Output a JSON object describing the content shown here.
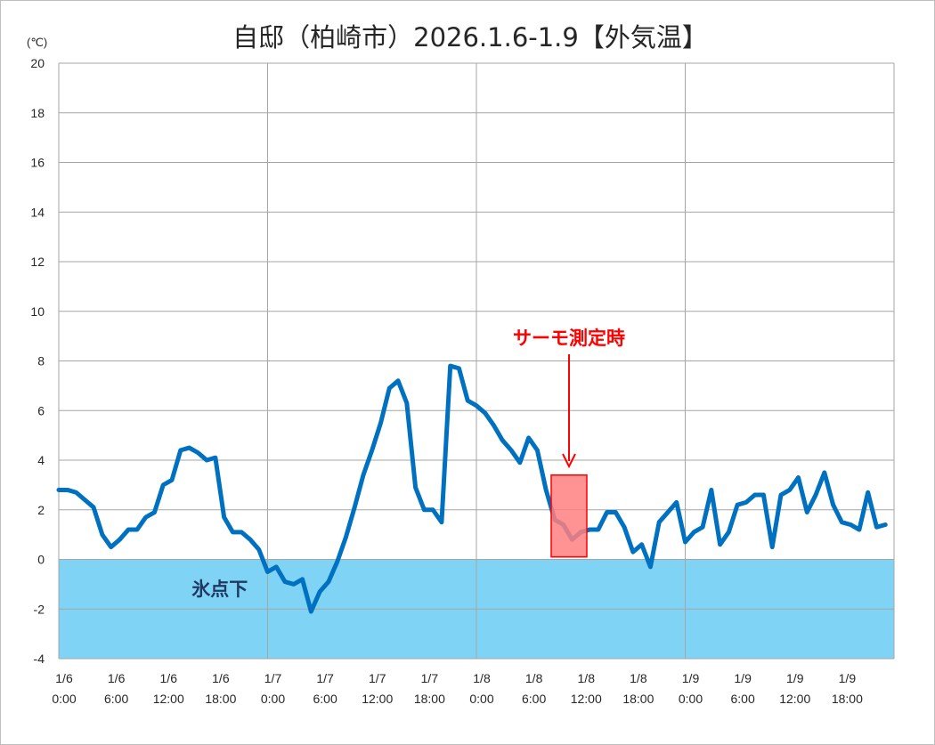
{
  "chart_data": {
    "type": "line",
    "title": "自邸（柏崎市）2026.1.6-1.9【外気温】",
    "ylabel": "(℃)",
    "ylim": [
      -4,
      20
    ],
    "yticks": [
      "20",
      "18",
      "16",
      "14",
      "12",
      "10",
      "8",
      "6",
      "4",
      "2",
      "0",
      "-2",
      "-4"
    ],
    "x_tick_labels": [
      [
        "1/6",
        "0:00"
      ],
      [
        "1/6",
        "6:00"
      ],
      [
        "1/6",
        "12:00"
      ],
      [
        "1/6",
        "18:00"
      ],
      [
        "1/7",
        "0:00"
      ],
      [
        "1/7",
        "6:00"
      ],
      [
        "1/7",
        "12:00"
      ],
      [
        "1/7",
        "18:00"
      ],
      [
        "1/8",
        "0:00"
      ],
      [
        "1/8",
        "6:00"
      ],
      [
        "1/8",
        "12:00"
      ],
      [
        "1/8",
        "18:00"
      ],
      [
        "1/9",
        "0:00"
      ],
      [
        "1/9",
        "6:00"
      ],
      [
        "1/9",
        "12:00"
      ],
      [
        "1/9",
        "18:00"
      ]
    ],
    "x_unit": "hours",
    "x_range": [
      0,
      96
    ],
    "grid": true,
    "line_color": "#0070c0",
    "freezing_zone": {
      "label": "氷点下",
      "range": [
        -4,
        0
      ],
      "color": "#7fd4f6"
    },
    "annotation": {
      "text": "サーモ測定時",
      "x_range": [
        13,
        14.5
      ],
      "y_range": [
        0.1,
        3.4
      ],
      "color": "#ff0000",
      "fill": "#ff7f7f"
    },
    "series": [
      {
        "x": [
          0,
          1,
          2,
          3,
          4,
          5,
          6,
          7,
          8,
          9,
          10,
          11,
          12,
          13,
          14,
          15,
          16,
          17,
          18,
          19,
          20,
          21,
          22,
          23,
          24,
          25,
          26,
          27,
          28,
          29,
          30,
          31,
          32,
          33,
          34,
          35,
          36,
          37,
          38,
          39,
          40,
          41,
          42,
          43,
          44,
          45,
          46,
          47,
          48,
          49,
          50,
          51,
          52,
          53,
          54,
          55,
          56,
          57,
          58,
          59,
          60,
          61,
          62,
          63,
          64,
          65,
          66,
          67,
          68,
          69,
          70,
          71,
          72,
          73,
          74,
          75,
          76,
          77,
          78,
          79,
          80,
          81,
          82,
          83,
          84,
          85,
          86,
          87,
          88,
          89,
          90,
          91,
          92,
          93,
          94,
          95
        ],
        "values": [
          2.8,
          2.8,
          2.7,
          2.4,
          2.1,
          1.0,
          0.5,
          0.8,
          1.2,
          1.2,
          1.7,
          1.9,
          3.0,
          3.2,
          4.4,
          4.5,
          4.3,
          4.0,
          4.1,
          1.7,
          1.1,
          1.1,
          0.8,
          0.4,
          -0.5,
          -0.3,
          -0.9,
          -1.0,
          -0.8,
          -2.1,
          -1.3,
          -0.9,
          -0.1,
          0.9,
          2.1,
          3.4,
          4.4,
          5.5,
          6.9,
          7.2,
          6.3,
          2.9,
          2.0,
          2.0,
          1.5,
          7.8,
          7.7,
          6.4,
          6.2,
          5.9,
          5.4,
          4.8,
          4.4,
          3.9,
          4.9,
          4.4,
          2.8,
          1.6,
          1.4,
          0.8,
          1.1,
          1.2,
          1.2,
          1.9,
          1.9,
          1.3,
          0.3,
          0.6,
          -0.3,
          1.5,
          1.9,
          2.3,
          0.7,
          1.1,
          1.3,
          2.8,
          0.6,
          1.1,
          2.2,
          2.3,
          2.6,
          2.6,
          0.5,
          2.6,
          2.8,
          3.3,
          1.9,
          2.6,
          3.5,
          2.2,
          1.5,
          1.4,
          1.2,
          2.7,
          1.3,
          1.4
        ]
      }
    ]
  }
}
